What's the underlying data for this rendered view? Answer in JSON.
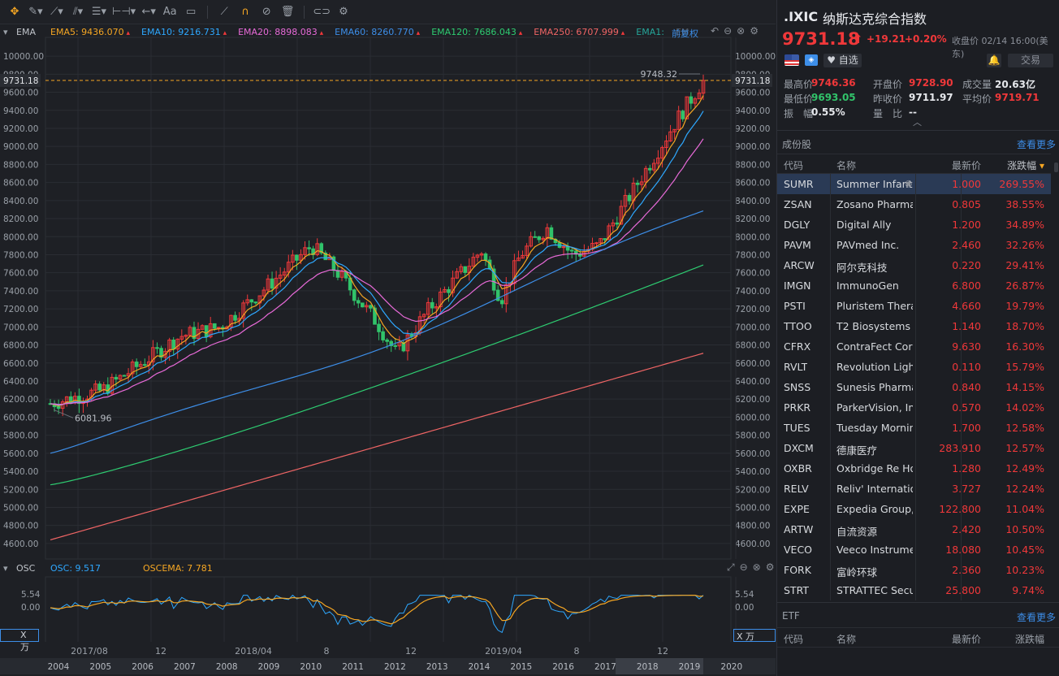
{
  "toolbar": {
    "tools": [
      "crosshair-icon",
      "pen-tool-icon",
      "line-tool-icon",
      "channel-tool-icon",
      "fib-tool-icon",
      "measure-tool-icon",
      "arrow-tool-icon",
      "text-tool-icon",
      "comment-icon",
      "ruler-icon",
      "magnet-icon",
      "hide-icon",
      "trash-icon",
      "link-icon",
      "settings-icon"
    ],
    "text_tool_label": "Aa"
  },
  "chart": {
    "ema_label": "EMA",
    "legend": [
      {
        "label": "EMA5: 9436.070",
        "color": "#f5a623"
      },
      {
        "label": "EMA10: 9216.731",
        "color": "#2ea8ff"
      },
      {
        "label": "EMA20: 8898.083",
        "color": "#e86ad8"
      },
      {
        "label": "EMA60: 8260.770",
        "color": "#3d8ee8"
      },
      {
        "label": "EMA120: 7686.043",
        "color": "#2ecc71"
      },
      {
        "label": "EMA250: 6707.999",
        "color": "#f06565"
      },
      {
        "label": "EMA1:",
        "color": "#26a69a"
      },
      {
        "label": "EM",
        "color": "#555a62"
      }
    ],
    "adjust_label": "前复权",
    "price_ticks": [
      "10000.00",
      "9800.00",
      "9600.00",
      "9400.00",
      "9200.00",
      "9000.00",
      "8800.00",
      "8600.00",
      "8400.00",
      "8200.00",
      "8000.00",
      "7800.00",
      "7600.00",
      "7400.00",
      "7200.00",
      "7000.00",
      "6800.00",
      "6600.00",
      "6400.00",
      "6200.00",
      "6000.00",
      "5800.00",
      "5600.00",
      "5400.00",
      "5200.00",
      "5000.00",
      "4800.00",
      "4600.00"
    ],
    "current_price_tag": "9731.18",
    "high_label": "9748.32",
    "low_label": "6081.96",
    "osc": {
      "label": "OSC",
      "osc_value": "OSC: 9.517",
      "oscema_value": "OSCEMA: 7.781",
      "ticks": [
        "5.54",
        "0.00"
      ],
      "unit_left": "X 万",
      "unit_right": "X 万"
    },
    "time_labels": [
      "2017/08",
      "12",
      "2018/04",
      "8",
      "12",
      "2019/04",
      "8",
      "12"
    ],
    "year_labels": [
      "2004",
      "2005",
      "2006",
      "2007",
      "2008",
      "2009",
      "2010",
      "2011",
      "2012",
      "2013",
      "2014",
      "2015",
      "2016",
      "2017",
      "2018",
      "2019",
      "2020"
    ],
    "colors": {
      "up": "#f0383a",
      "down": "#31c36a",
      "bg": "#1e2025",
      "grid": "#2a2d33"
    }
  },
  "chart_data": {
    "type": "candlestick",
    "title": "",
    "ylabel": "",
    "ylim": [
      4500,
      10100
    ],
    "x_range": [
      "2017/06",
      "2020/02"
    ],
    "ema_series": [
      {
        "name": "EMA5",
        "start": 6150,
        "end": 9436.07
      },
      {
        "name": "EMA10",
        "start": 6120,
        "end": 9216.731
      },
      {
        "name": "EMA20",
        "start": 6020,
        "end": 8898.083
      },
      {
        "name": "EMA60",
        "start": 5600,
        "end": 8260.77
      },
      {
        "name": "EMA120",
        "start": 5250,
        "end": 7686.043
      },
      {
        "name": "EMA250",
        "start": 4640,
        "end": 6707.999
      }
    ],
    "high": 9748.32,
    "low": 6081.96,
    "last": 9731.18
  },
  "quote": {
    "code": ".IXIC",
    "name": "纳斯达克综合指数",
    "price": "9731.18",
    "arrow": "⬆",
    "change": "+19.21",
    "change_pct": "+0.20%",
    "close_time": "收盘价 02/14 16:00(美东)",
    "watch_label": "自选",
    "trade_label": "交易",
    "stats": [
      {
        "label": "最高价",
        "value": "9746.36",
        "color": "red"
      },
      {
        "label": "开盘价",
        "value": "9728.90",
        "color": "red"
      },
      {
        "label": "成交量",
        "value": "20.63亿",
        "color": "wht"
      },
      {
        "label": "最低价",
        "value": "9693.05",
        "color": "green"
      },
      {
        "label": "昨收价",
        "value": "9711.97",
        "color": "wht"
      },
      {
        "label": "平均价",
        "value": "9719.71",
        "color": "red"
      },
      {
        "label": "振　幅",
        "value": "0.55%",
        "color": "wht"
      },
      {
        "label": "量　比",
        "value": "--",
        "color": "wht"
      }
    ]
  },
  "constituents": {
    "title": "成份股",
    "more": "查看更多",
    "headers": {
      "code": "代码",
      "name": "名称",
      "price": "最新价",
      "pct": "涨跌幅"
    },
    "rows": [
      {
        "code": "SUMR",
        "name": "Summer Infant",
        "price": "1.000",
        "pct": "269.55%"
      },
      {
        "code": "ZSAN",
        "name": "Zosano Pharma",
        "price": "0.805",
        "pct": "38.55%"
      },
      {
        "code": "DGLY",
        "name": "Digital Ally",
        "price": "1.200",
        "pct": "34.89%"
      },
      {
        "code": "PAVM",
        "name": "PAVmed Inc.",
        "price": "2.460",
        "pct": "32.26%"
      },
      {
        "code": "ARCW",
        "name": "阿尔克科技",
        "price": "0.220",
        "pct": "29.41%"
      },
      {
        "code": "IMGN",
        "name": "ImmunoGen",
        "price": "6.800",
        "pct": "26.87%"
      },
      {
        "code": "PSTI",
        "name": "Pluristem Therap",
        "price": "4.660",
        "pct": "19.79%"
      },
      {
        "code": "TTOO",
        "name": "T2 Biosystems",
        "price": "1.140",
        "pct": "18.70%"
      },
      {
        "code": "CFRX",
        "name": "ContraFect Corp",
        "price": "9.630",
        "pct": "16.30%"
      },
      {
        "code": "RVLT",
        "name": "Revolution Lighti",
        "price": "0.110",
        "pct": "15.79%"
      },
      {
        "code": "SNSS",
        "name": "Sunesis Pharma",
        "price": "0.840",
        "pct": "14.15%"
      },
      {
        "code": "PRKR",
        "name": "ParkerVision, Inc",
        "price": "0.570",
        "pct": "14.02%"
      },
      {
        "code": "TUES",
        "name": "Tuesday Morning",
        "price": "1.700",
        "pct": "12.58%"
      },
      {
        "code": "DXCM",
        "name": "德康医疗",
        "price": "283.910",
        "pct": "12.57%"
      },
      {
        "code": "OXBR",
        "name": "Oxbridge Re Hol",
        "price": "1.280",
        "pct": "12.49%"
      },
      {
        "code": "RELV",
        "name": "Reliv' Internation",
        "price": "3.727",
        "pct": "12.24%"
      },
      {
        "code": "EXPE",
        "name": "Expedia Group,",
        "price": "122.800",
        "pct": "11.04%"
      },
      {
        "code": "ARTW",
        "name": "自流资源",
        "price": "2.420",
        "pct": "10.50%"
      },
      {
        "code": "VECO",
        "name": "Veeco Instrumer",
        "price": "18.080",
        "pct": "10.45%"
      },
      {
        "code": "FORK",
        "name": "富岭环球",
        "price": "2.360",
        "pct": "10.23%"
      },
      {
        "code": "STRT",
        "name": "STRATTEC Secu",
        "price": "25.800",
        "pct": "9.74%"
      }
    ]
  },
  "etf": {
    "title": "ETF",
    "more": "查看更多",
    "headers": {
      "code": "代码",
      "name": "名称",
      "price": "最新价",
      "pct": "涨跌幅"
    }
  }
}
